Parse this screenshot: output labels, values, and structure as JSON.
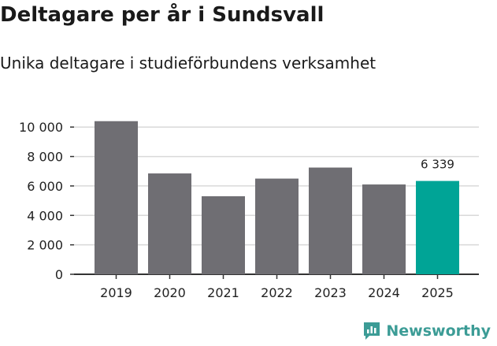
{
  "title": "Deltagare per år i Sundsvall",
  "subtitle": "Unika deltagare i studieförbundens verksamhet",
  "colors": {
    "bar": "#6f6e73",
    "highlight": "#00a496",
    "grid": "#d9d9d9",
    "axis": "#333333",
    "text": "#222222",
    "brand": "#3c9c96"
  },
  "brand": {
    "name": "Newsworthy",
    "icon": "chart-logo-icon"
  },
  "chart_data": {
    "type": "bar",
    "title": "Deltagare per år i Sundsvall",
    "subtitle": "Unika deltagare i studieförbundens verksamhet",
    "xlabel": "",
    "ylabel": "",
    "categories": [
      "2019",
      "2020",
      "2021",
      "2022",
      "2023",
      "2024",
      "2025"
    ],
    "values": [
      10400,
      6850,
      5300,
      6500,
      7250,
      6100,
      6339
    ],
    "highlight_index": 6,
    "annotation": {
      "index": 6,
      "text": "6 339"
    },
    "ylim": [
      0,
      10600
    ],
    "yticks": [
      0,
      2000,
      4000,
      6000,
      8000,
      10000
    ],
    "ytick_labels": [
      "0",
      "2 000",
      "4 000",
      "6 000",
      "8 000",
      "10 000"
    ],
    "grid": true
  }
}
